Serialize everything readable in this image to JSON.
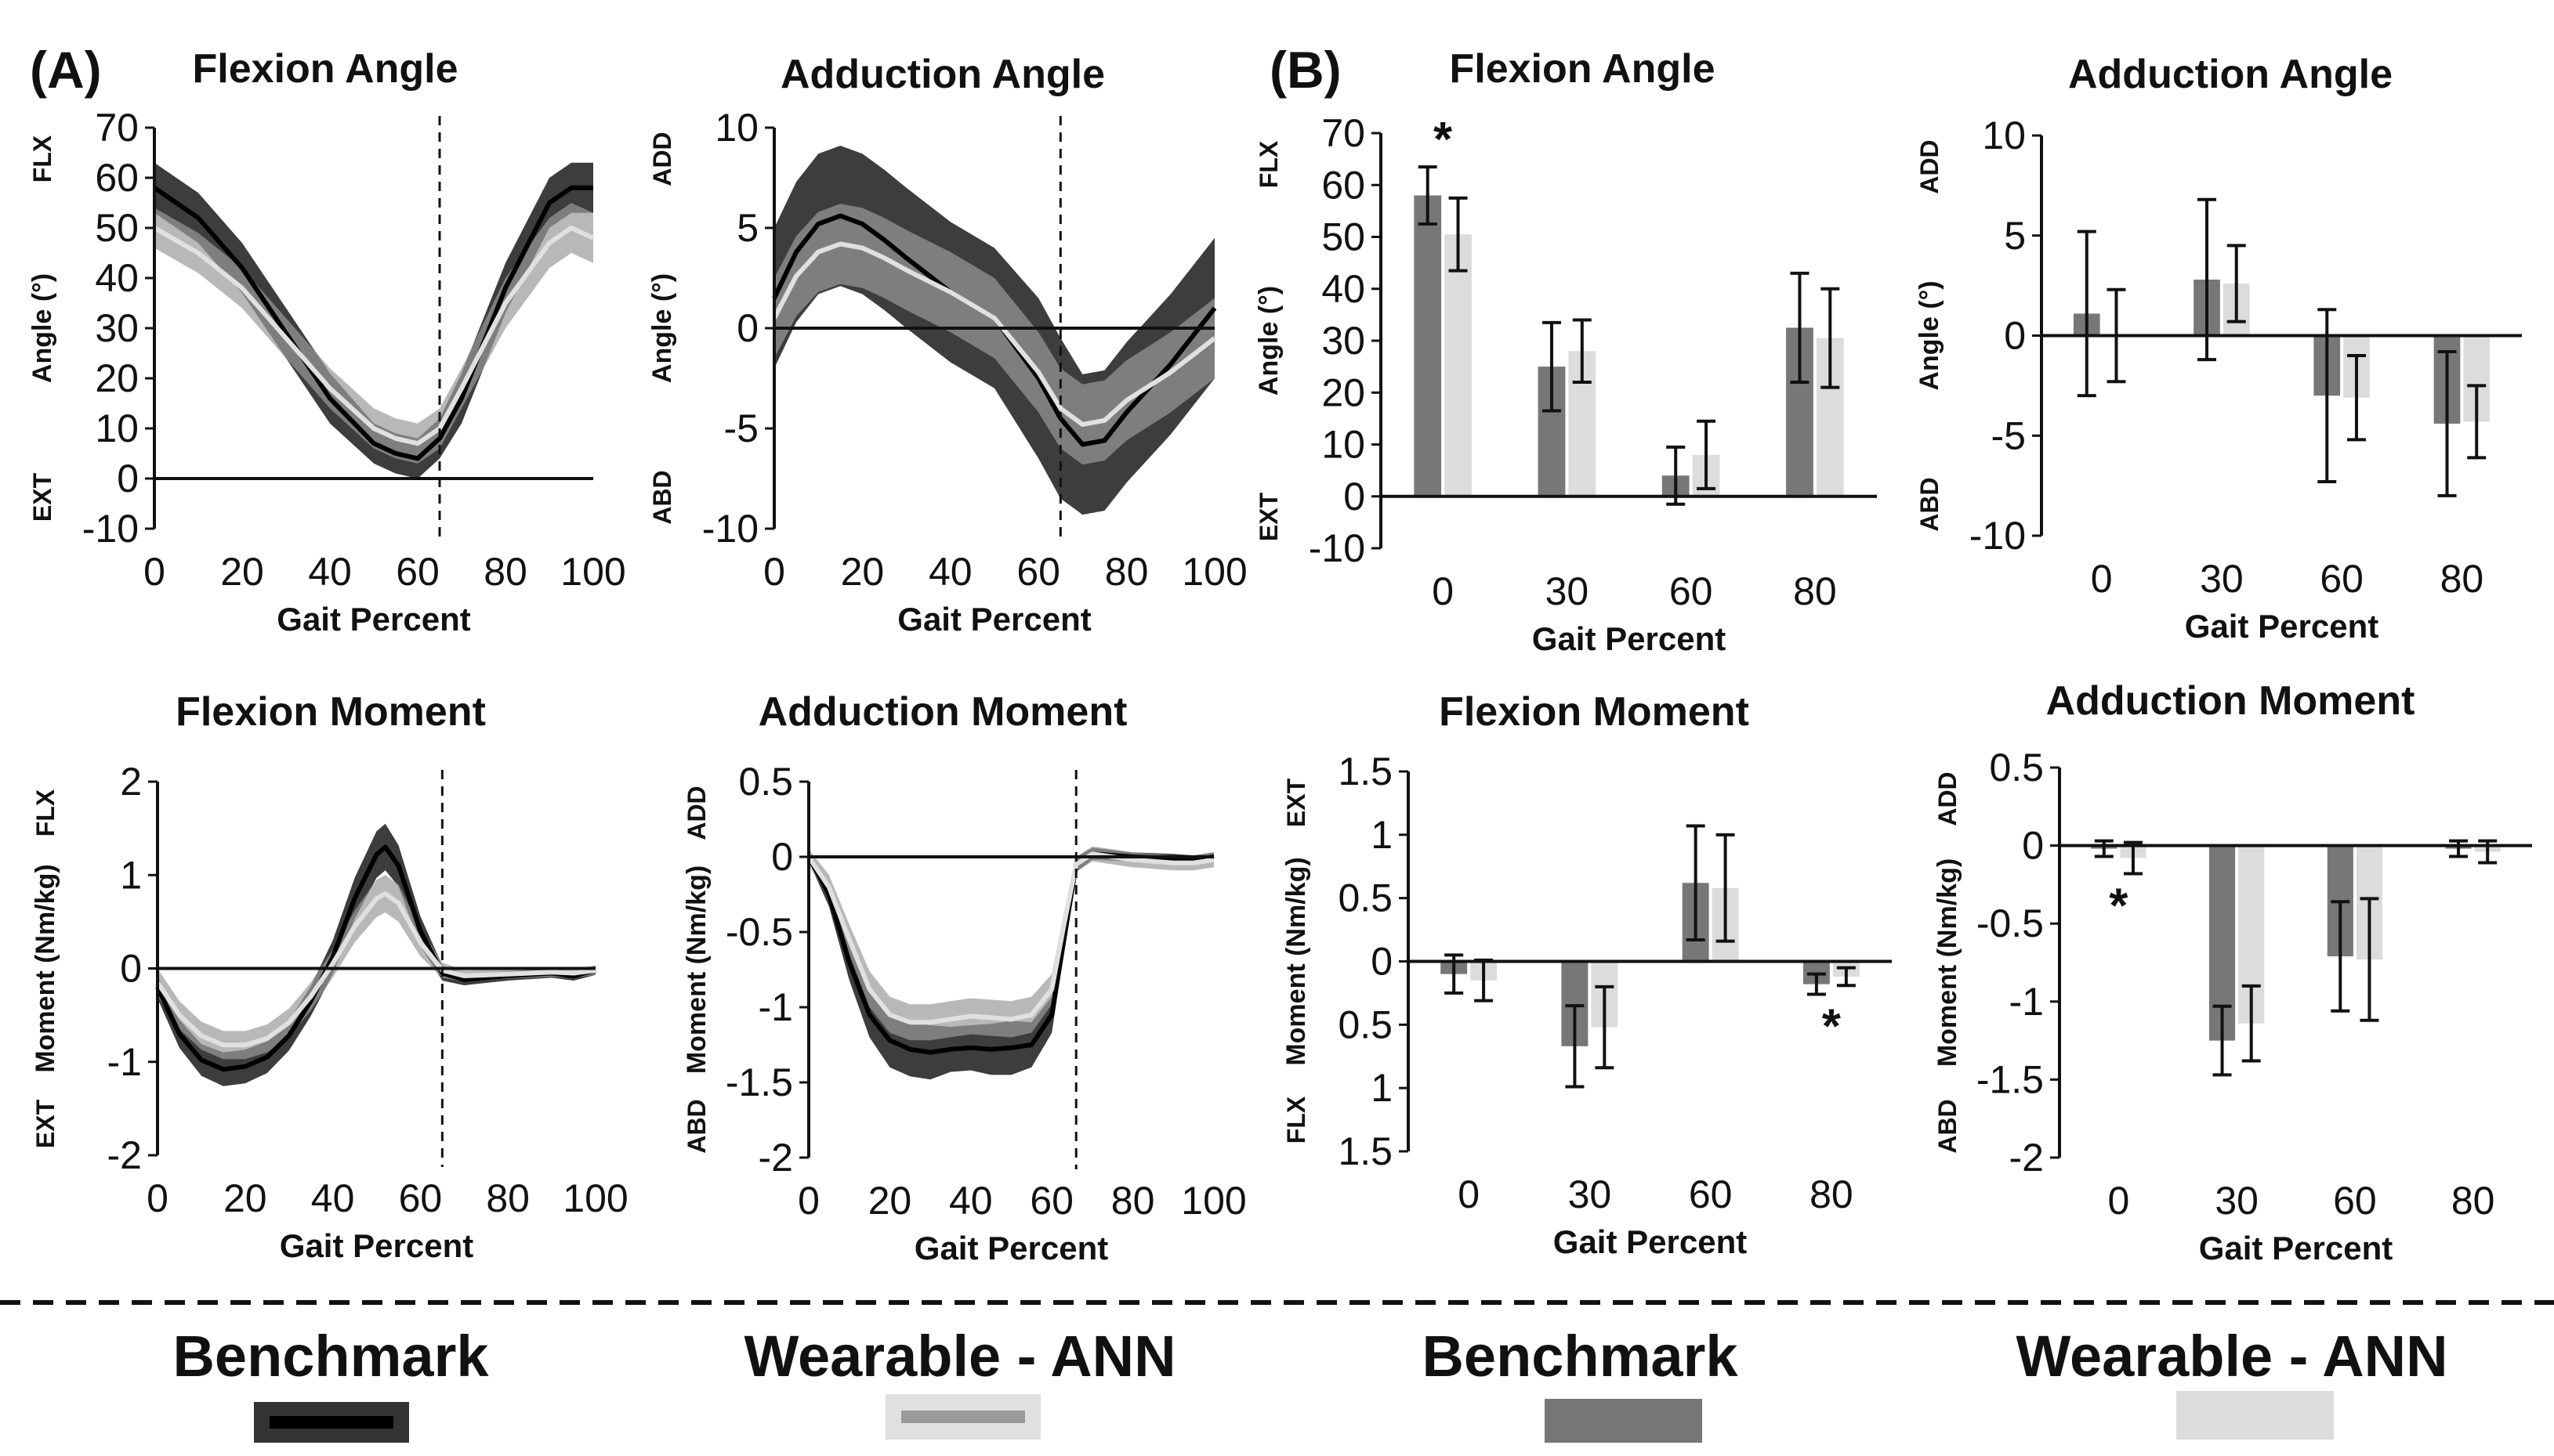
{
  "colors": {
    "benchmark_line": "#000000",
    "benchmark_band": "#333333",
    "benchmark_bar": "#777777",
    "ann_line": "#e0e0e0",
    "ann_band": "#9a9a9a",
    "ann_bar": "#dcdcdc",
    "errorbar": "#111111",
    "axis": "#111111"
  },
  "figure": {
    "panel_a": "(A)",
    "panel_b": "(B)",
    "legend": {
      "benchmark_a": "Benchmark",
      "ann_a": "Wearable - ANN",
      "benchmark_b": "Benchmark",
      "ann_b": "Wearable - ANN"
    }
  },
  "chart_data": [
    {
      "id": "a1",
      "type": "line",
      "title": "Flexion Angle",
      "xlabel": "Gait Percent",
      "ylabel": "Angle (°)",
      "dir_top": "FLX",
      "dir_bottom": "EXT",
      "xlim": [
        0,
        100
      ],
      "ylim": [
        -10,
        70
      ],
      "xticks": [
        0,
        20,
        40,
        60,
        80,
        100
      ],
      "yticks": [
        -10,
        0,
        10,
        20,
        30,
        40,
        50,
        60,
        70
      ],
      "toe_off": 65,
      "x": [
        0,
        10,
        20,
        30,
        40,
        50,
        55,
        60,
        65,
        70,
        80,
        90,
        95,
        100
      ],
      "series": [
        {
          "name": "Benchmark",
          "values": [
            58,
            52,
            42,
            29,
            16,
            7,
            5,
            4,
            8,
            16,
            38,
            55,
            58,
            58
          ],
          "sd": [
            5,
            5,
            5,
            5,
            5,
            4,
            4,
            4,
            4,
            5,
            5,
            5,
            5,
            5
          ]
        },
        {
          "name": "Wearable - ANN",
          "values": [
            50,
            45,
            38,
            28,
            18,
            10,
            8,
            7,
            10,
            18,
            35,
            47,
            50,
            48
          ],
          "sd": [
            4,
            4,
            4,
            4,
            4,
            4,
            4,
            4,
            4,
            4,
            5,
            5,
            5,
            5
          ]
        }
      ]
    },
    {
      "id": "a2",
      "type": "line",
      "title": "Adduction Angle",
      "xlabel": "Gait Percent",
      "ylabel": "Angle (°)",
      "dir_top": "ADD",
      "dir_bottom": "ABD",
      "xlim": [
        0,
        100
      ],
      "ylim": [
        -10,
        10
      ],
      "xticks": [
        0,
        20,
        40,
        60,
        80,
        100
      ],
      "yticks": [
        -10,
        -5,
        0,
        5,
        10
      ],
      "toe_off": 65,
      "x": [
        0,
        5,
        10,
        15,
        20,
        25,
        30,
        40,
        50,
        60,
        65,
        70,
        75,
        80,
        90,
        100
      ],
      "series": [
        {
          "name": "Benchmark",
          "values": [
            1.5,
            3.8,
            5.2,
            5.6,
            5.2,
            4.4,
            3.5,
            1.8,
            0.5,
            -2.5,
            -4.5,
            -5.8,
            -5.6,
            -4.2,
            -1.8,
            1.0
          ],
          "sd": [
            3.5,
            3.5,
            3.5,
            3.5,
            3.5,
            3.5,
            3.5,
            3.5,
            3.5,
            4,
            4,
            3.5,
            3.5,
            3.5,
            3.5,
            3.5
          ]
        },
        {
          "name": "Wearable - ANN",
          "values": [
            0.5,
            2.6,
            3.8,
            4.2,
            4.0,
            3.5,
            2.9,
            1.8,
            0.5,
            -2.2,
            -4.0,
            -4.8,
            -4.6,
            -3.6,
            -2.2,
            -0.5
          ],
          "sd": [
            2,
            2,
            2,
            2,
            2,
            2,
            2,
            2,
            2,
            2,
            2,
            2,
            2,
            2,
            2,
            2
          ]
        }
      ]
    },
    {
      "id": "a3",
      "type": "line",
      "title": "Flexion Moment",
      "xlabel": "Gait Percent",
      "ylabel": "Moment (Nm/kg)",
      "dir_top": "FLX",
      "dir_bottom": "EXT",
      "xlim": [
        0,
        100
      ],
      "ylim": [
        -2,
        2
      ],
      "xticks": [
        0,
        20,
        40,
        60,
        80,
        100
      ],
      "yticks": [
        -2,
        -1,
        0,
        1,
        2
      ],
      "toe_off": 65,
      "x": [
        0,
        5,
        10,
        15,
        20,
        25,
        30,
        35,
        40,
        45,
        50,
        52,
        55,
        60,
        65,
        70,
        80,
        90,
        95,
        100
      ],
      "series": [
        {
          "name": "Benchmark",
          "values": [
            -0.2,
            -0.7,
            -0.98,
            -1.08,
            -1.05,
            -0.95,
            -0.72,
            -0.35,
            0.12,
            0.75,
            1.22,
            1.3,
            1.1,
            0.4,
            -0.05,
            -0.12,
            -0.08,
            -0.05,
            -0.08,
            -0.02
          ],
          "sd": [
            0.12,
            0.15,
            0.17,
            0.18,
            0.18,
            0.17,
            0.16,
            0.16,
            0.18,
            0.22,
            0.25,
            0.25,
            0.22,
            0.16,
            0.08,
            0.06,
            0.05,
            0.05,
            0.05,
            0.05
          ]
        },
        {
          "name": "Wearable - ANN",
          "values": [
            -0.15,
            -0.5,
            -0.72,
            -0.82,
            -0.82,
            -0.75,
            -0.58,
            -0.3,
            0.05,
            0.45,
            0.75,
            0.8,
            0.7,
            0.28,
            -0.02,
            -0.08,
            -0.06,
            -0.04,
            -0.05,
            -0.02
          ],
          "sd": [
            0.15,
            0.15,
            0.15,
            0.15,
            0.15,
            0.15,
            0.15,
            0.15,
            0.15,
            0.17,
            0.2,
            0.2,
            0.2,
            0.15,
            0.08,
            0.06,
            0.05,
            0.05,
            0.05,
            0.05
          ]
        }
      ]
    },
    {
      "id": "a4",
      "type": "line",
      "title": "Adduction Moment",
      "xlabel": "Gait Percent",
      "ylabel": "Moment (Nm/kg)",
      "dir_top": "ADD",
      "dir_bottom": "ABD",
      "xlim": [
        0,
        100
      ],
      "ylim": [
        -2,
        0.5
      ],
      "xticks": [
        0,
        20,
        40,
        60,
        80,
        100
      ],
      "yticks": [
        -2,
        -1.5,
        -1,
        -0.5,
        0,
        0.5
      ],
      "toe_off": 66,
      "x": [
        0,
        5,
        10,
        15,
        20,
        25,
        30,
        35,
        40,
        45,
        50,
        55,
        60,
        63,
        66,
        70,
        80,
        90,
        95,
        100
      ],
      "series": [
        {
          "name": "Benchmark",
          "values": [
            0,
            -0.25,
            -0.7,
            -1.05,
            -1.22,
            -1.28,
            -1.3,
            -1.28,
            -1.27,
            -1.28,
            -1.27,
            -1.25,
            -1.05,
            -0.55,
            -0.05,
            0.02,
            0,
            -0.01,
            -0.02,
            0
          ],
          "sd": [
            0.03,
            0.08,
            0.12,
            0.15,
            0.18,
            0.18,
            0.18,
            0.15,
            0.15,
            0.17,
            0.18,
            0.15,
            0.12,
            0.08,
            0.05,
            0.04,
            0.03,
            0.03,
            0.03,
            0.03
          ]
        },
        {
          "name": "Wearable - ANN",
          "values": [
            0,
            -0.2,
            -0.55,
            -0.88,
            -1.05,
            -1.1,
            -1.1,
            -1.08,
            -1.06,
            -1.07,
            -1.08,
            -1.05,
            -0.88,
            -0.45,
            -0.05,
            0.02,
            -0.02,
            -0.04,
            -0.04,
            -0.02
          ],
          "sd": [
            0.05,
            0.08,
            0.1,
            0.12,
            0.12,
            0.12,
            0.12,
            0.12,
            0.12,
            0.12,
            0.12,
            0.12,
            0.1,
            0.08,
            0.05,
            0.05,
            0.05,
            0.05,
            0.05,
            0.05
          ]
        }
      ]
    },
    {
      "id": "b1",
      "type": "bar",
      "title": "Flexion Angle",
      "xlabel": "Gait Percent",
      "ylabel": "Angle (°)",
      "dir_top": "FLX",
      "dir_bottom": "EXT",
      "categories": [
        "0",
        "30",
        "60",
        "80"
      ],
      "ylim": [
        -10,
        70
      ],
      "yticks": [
        -10,
        0,
        10,
        20,
        30,
        40,
        50,
        60,
        70
      ],
      "series": [
        {
          "name": "Benchmark",
          "values": [
            58,
            25,
            4,
            32.5
          ],
          "err": [
            5.5,
            8.5,
            5.5,
            10.5
          ]
        },
        {
          "name": "Wearable - ANN",
          "values": [
            50.5,
            28,
            8,
            30.5
          ],
          "err": [
            7,
            6,
            6.5,
            9.5
          ]
        }
      ],
      "significance": [
        {
          "category": "0",
          "position": "above",
          "label": "*"
        }
      ]
    },
    {
      "id": "b2",
      "type": "bar",
      "title": "Adduction Angle",
      "xlabel": "Gait Percent",
      "ylabel": "Angle (°)",
      "dir_top": "ADD",
      "dir_bottom": "ABD",
      "categories": [
        "0",
        "30",
        "60",
        "80"
      ],
      "ylim": [
        -10,
        10
      ],
      "yticks": [
        -10,
        -5,
        0,
        5,
        10
      ],
      "series": [
        {
          "name": "Benchmark",
          "values": [
            1.1,
            2.8,
            -3.0,
            -4.4
          ],
          "err": [
            4.1,
            4.0,
            4.3,
            3.6
          ]
        },
        {
          "name": "Wearable - ANN",
          "values": [
            0.0,
            2.6,
            -3.1,
            -4.3
          ],
          "err": [
            2.3,
            1.9,
            2.1,
            1.8
          ]
        }
      ],
      "significance": []
    },
    {
      "id": "b3",
      "type": "bar",
      "title": "Flexion Moment",
      "xlabel": "Gait Percent",
      "ylabel": "Moment (Nm/kg)",
      "dir_top": "EXT",
      "dir_bottom": "FLX",
      "categories": [
        "0",
        "30",
        "60",
        "80"
      ],
      "ylim": [
        -1.5,
        1.5
      ],
      "yticks": [
        -1.5,
        -1,
        -0.5,
        0,
        0.5,
        1,
        1.5
      ],
      "ytick_text": [
        "1.5",
        "1",
        "0.5",
        "0",
        "0.5",
        "1",
        "1.5"
      ],
      "series": [
        {
          "name": "Benchmark",
          "values": [
            -0.1,
            -0.67,
            0.62,
            -0.18
          ],
          "err": [
            0.15,
            0.32,
            0.45,
            0.08
          ]
        },
        {
          "name": "Wearable - ANN",
          "values": [
            -0.15,
            -0.52,
            0.58,
            -0.12
          ],
          "err": [
            0.16,
            0.32,
            0.42,
            0.07
          ]
        }
      ],
      "significance": [
        {
          "category": "80",
          "position": "below",
          "label": "*"
        }
      ]
    },
    {
      "id": "b4",
      "type": "bar",
      "title": "Adduction Moment",
      "xlabel": "Gait Percent",
      "ylabel": "Moment (Nm/kg)",
      "dir_top": "ADD",
      "dir_bottom": "ABD",
      "categories": [
        "0",
        "30",
        "60",
        "80"
      ],
      "ylim": [
        -2,
        0.5
      ],
      "yticks": [
        -2,
        -1.5,
        -1,
        -0.5,
        0,
        0.5
      ],
      "series": [
        {
          "name": "Benchmark",
          "values": [
            -0.02,
            -1.25,
            -0.71,
            -0.02
          ],
          "err": [
            0.05,
            0.22,
            0.35,
            0.05
          ]
        },
        {
          "name": "Wearable - ANN",
          "values": [
            -0.08,
            -1.14,
            -0.73,
            -0.04
          ],
          "err": [
            0.1,
            0.24,
            0.39,
            0.07
          ]
        }
      ],
      "significance": [
        {
          "category": "0",
          "position": "below",
          "label": "*"
        }
      ]
    }
  ]
}
